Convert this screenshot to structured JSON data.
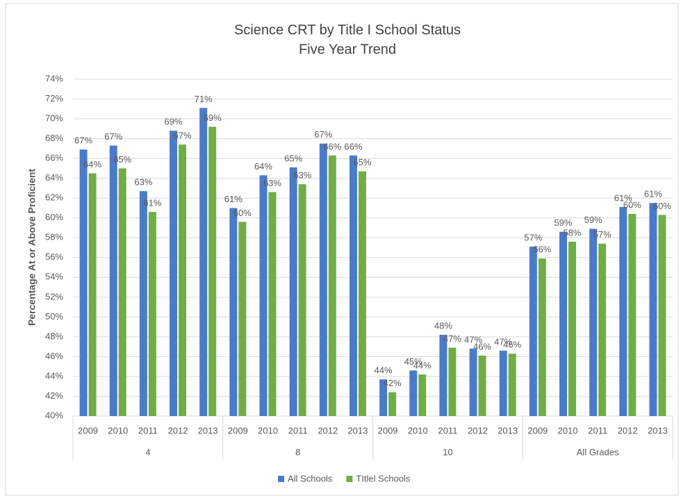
{
  "chart_data": {
    "type": "bar",
    "title": "Science CRT by Title I School Status",
    "subtitle": "Five Year Trend",
    "y_label": "Percentage At or Above Proficient",
    "categories": [
      "2009",
      "2010",
      "2011",
      "2012",
      "2013",
      "2009",
      "2010",
      "2011",
      "2012",
      "2013",
      "2009",
      "2010",
      "2011",
      "2012",
      "2013",
      "2009",
      "2010",
      "2011",
      "2012",
      "2013"
    ],
    "category_groups": [
      "4",
      "8",
      "10",
      "All Grades"
    ],
    "series": [
      {
        "name": "All Schools",
        "color": "#4a7bc8",
        "values": [
          66.9,
          67.3,
          62.7,
          68.8,
          71.1,
          61.0,
          64.3,
          65.1,
          67.5,
          66.3,
          43.7,
          44.6,
          48.2,
          46.8,
          46.6,
          57.1,
          58.6,
          58.9,
          61.1,
          61.5
        ],
        "value_labels": [
          "67%",
          "67%",
          "63%",
          "69%",
          "71%",
          "61%",
          "64%",
          "65%",
          "67%",
          "66%",
          "44%",
          "45%",
          "48%",
          "47%",
          "47%",
          "57%",
          "59%",
          "59%",
          "61%",
          "61%"
        ]
      },
      {
        "name": "TItlel Schools",
        "color": "#70ad47",
        "values": [
          64.5,
          65.0,
          60.6,
          67.4,
          69.2,
          59.6,
          62.6,
          63.4,
          66.3,
          64.7,
          42.4,
          44.2,
          46.9,
          46.1,
          46.3,
          55.9,
          57.6,
          57.4,
          60.4,
          60.3
        ],
        "value_labels": [
          "64%",
          "65%",
          "61%",
          "67%",
          "69%",
          "60%",
          "63%",
          "63%",
          "66%",
          "65%",
          "42%",
          "44%",
          "47%",
          "46%",
          "46%",
          "56%",
          "58%",
          "57%",
          "60%",
          "60%"
        ]
      }
    ],
    "ylim": [
      40,
      74
    ],
    "yticks": [
      {
        "value": 40,
        "label": "40%"
      },
      {
        "value": 42,
        "label": "42%"
      },
      {
        "value": 44,
        "label": "44%"
      },
      {
        "value": 46,
        "label": "46%"
      },
      {
        "value": 48,
        "label": "48%"
      },
      {
        "value": 50,
        "label": "50%"
      },
      {
        "value": 52,
        "label": "52%"
      },
      {
        "value": 54,
        "label": "54%"
      },
      {
        "value": 56,
        "label": "56%"
      },
      {
        "value": 58,
        "label": "58%"
      },
      {
        "value": 60,
        "label": "60%"
      },
      {
        "value": 62,
        "label": "62%"
      },
      {
        "value": 64,
        "label": "64%"
      },
      {
        "value": 66,
        "label": "66%"
      },
      {
        "value": 68,
        "label": "68%"
      },
      {
        "value": 70,
        "label": "70%"
      },
      {
        "value": 72,
        "label": "72%"
      },
      {
        "value": 74,
        "label": "74%"
      }
    ],
    "grid": true,
    "legend": "bottom"
  }
}
